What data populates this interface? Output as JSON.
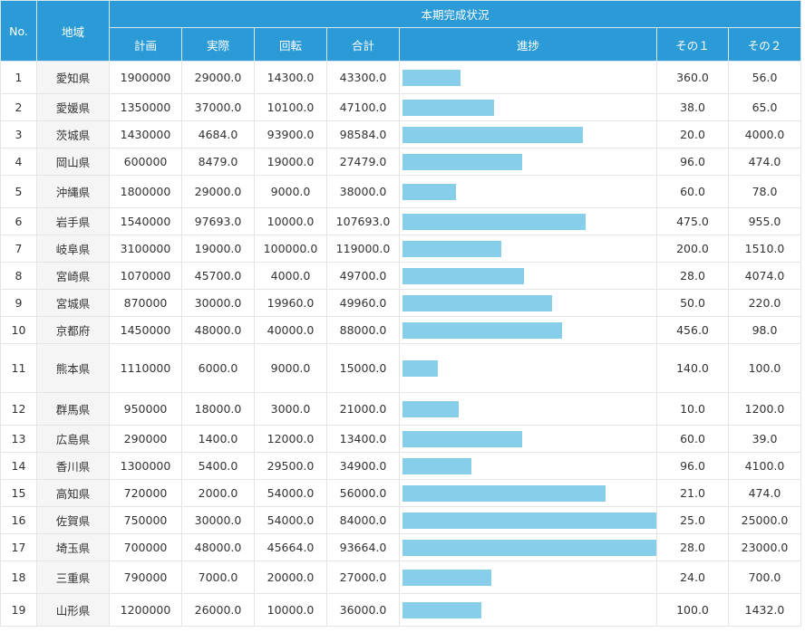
{
  "header": {
    "no": "No.",
    "area": "地域",
    "group": "本期完成状況",
    "plan": "計画",
    "actual": "実際",
    "turnover": "回転",
    "total": "合計",
    "progress": "進捗",
    "other1": "その１",
    "other2": "その２"
  },
  "rows": [
    {
      "no": "1",
      "area": "愛知県",
      "plan": "1900000",
      "actual": "29000.0",
      "turnover": "14300.0",
      "total": "43300.0",
      "progress": 0.23,
      "other1": "360.0",
      "other2": "56.0"
    },
    {
      "no": "2",
      "area": "愛媛県",
      "plan": "1350000",
      "actual": "37000.0",
      "turnover": "10100.0",
      "total": "47100.0",
      "progress": 0.36,
      "other1": "38.0",
      "other2": "65.0"
    },
    {
      "no": "3",
      "area": "茨城県",
      "plan": "1430000",
      "actual": "4684.0",
      "turnover": "93900.0",
      "total": "98584.0",
      "progress": 0.71,
      "other1": "20.0",
      "other2": "4000.0"
    },
    {
      "no": "4",
      "area": "岡山県",
      "plan": "600000",
      "actual": "8479.0",
      "turnover": "19000.0",
      "total": "27479.0",
      "progress": 0.47,
      "other1": "96.0",
      "other2": "474.0"
    },
    {
      "no": "5",
      "area": "沖縄県",
      "plan": "1800000",
      "actual": "29000.0",
      "turnover": "9000.0",
      "total": "38000.0",
      "progress": 0.21,
      "other1": "60.0",
      "other2": "78.0"
    },
    {
      "no": "6",
      "area": "岩手県",
      "plan": "1540000",
      "actual": "97693.0",
      "turnover": "10000.0",
      "total": "107693.0",
      "progress": 0.72,
      "other1": "475.0",
      "other2": "955.0"
    },
    {
      "no": "7",
      "area": "岐阜県",
      "plan": "3100000",
      "actual": "19000.0",
      "turnover": "100000.0",
      "total": "119000.0",
      "progress": 0.39,
      "other1": "200.0",
      "other2": "1510.0"
    },
    {
      "no": "8",
      "area": "宮崎県",
      "plan": "1070000",
      "actual": "45700.0",
      "turnover": "4000.0",
      "total": "49700.0",
      "progress": 0.48,
      "other1": "28.0",
      "other2": "4074.0"
    },
    {
      "no": "9",
      "area": "宮城県",
      "plan": "870000",
      "actual": "30000.0",
      "turnover": "19960.0",
      "total": "49960.0",
      "progress": 0.59,
      "other1": "50.0",
      "other2": "220.0"
    },
    {
      "no": "10",
      "area": "京都府",
      "plan": "1450000",
      "actual": "48000.0",
      "turnover": "40000.0",
      "total": "88000.0",
      "progress": 0.63,
      "other1": "456.0",
      "other2": "98.0"
    },
    {
      "no": "11",
      "area": "熊本県",
      "plan": "1110000",
      "actual": "6000.0",
      "turnover": "9000.0",
      "total": "15000.0",
      "progress": 0.14,
      "other1": "140.0",
      "other2": "100.0"
    },
    {
      "no": "12",
      "area": "群馬県",
      "plan": "950000",
      "actual": "18000.0",
      "turnover": "3000.0",
      "total": "21000.0",
      "progress": 0.22,
      "other1": "10.0",
      "other2": "1200.0"
    },
    {
      "no": "13",
      "area": "広島県",
      "plan": "290000",
      "actual": "1400.0",
      "turnover": "12000.0",
      "total": "13400.0",
      "progress": 0.47,
      "other1": "60.0",
      "other2": "39.0"
    },
    {
      "no": "14",
      "area": "香川県",
      "plan": "1300000",
      "actual": "5400.0",
      "turnover": "29500.0",
      "total": "34900.0",
      "progress": 0.27,
      "other1": "96.0",
      "other2": "4100.0"
    },
    {
      "no": "15",
      "area": "高知県",
      "plan": "720000",
      "actual": "2000.0",
      "turnover": "54000.0",
      "total": "56000.0",
      "progress": 0.8,
      "other1": "21.0",
      "other2": "474.0"
    },
    {
      "no": "16",
      "area": "佐賀県",
      "plan": "750000",
      "actual": "30000.0",
      "turnover": "54000.0",
      "total": "84000.0",
      "progress": 1.0,
      "other1": "25.0",
      "other2": "25000.0"
    },
    {
      "no": "17",
      "area": "埼玉県",
      "plan": "700000",
      "actual": "48000.0",
      "turnover": "45664.0",
      "total": "93664.0",
      "progress": 1.0,
      "other1": "28.0",
      "other2": "23000.0"
    },
    {
      "no": "18",
      "area": "三重県",
      "plan": "790000",
      "actual": "7000.0",
      "turnover": "20000.0",
      "total": "27000.0",
      "progress": 0.35,
      "other1": "24.0",
      "other2": "700.0"
    },
    {
      "no": "19",
      "area": "山形県",
      "plan": "1200000",
      "actual": "26000.0",
      "turnover": "10000.0",
      "total": "36000.0",
      "progress": 0.31,
      "other1": "100.0",
      "other2": "1432.0"
    }
  ],
  "colors": {
    "header_bg": "#2b9bd8",
    "bar": "#87ceeb"
  }
}
